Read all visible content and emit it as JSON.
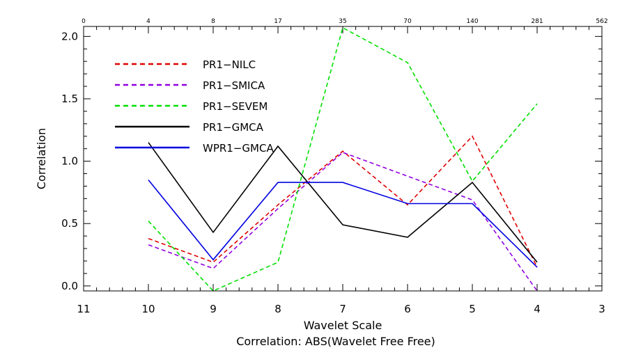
{
  "chart_data": {
    "type": "line",
    "title": "Correlation: ABS(Wavelet  Free Free)",
    "xlabel": "Wavelet Scale",
    "ylabel": "Correlation",
    "x_reversed": true,
    "xlim": [
      11,
      3
    ],
    "ylim": [
      -0.04,
      2.08
    ],
    "x_ticks": [
      11,
      10,
      9,
      8,
      7,
      6,
      5,
      4,
      3
    ],
    "x_tick_labels": [
      "11",
      "10",
      "9",
      "8",
      "7",
      "6",
      "5",
      "4",
      "3"
    ],
    "y_ticks": [
      0.0,
      0.5,
      1.0,
      1.5,
      2.0
    ],
    "y_tick_labels": [
      "0.0",
      "0.5",
      "1.0",
      "1.5",
      "2.0"
    ],
    "top_axis_ticks": [
      11,
      10,
      9,
      8,
      7,
      6,
      5,
      4,
      3
    ],
    "top_axis_tick_labels": [
      "0",
      "4",
      "8",
      "17",
      "35",
      "70",
      "140",
      "281",
      "562"
    ],
    "legend_position": "top-left",
    "series": [
      {
        "name": "PR1−NILC",
        "color": "#e00000",
        "dashed": true,
        "x": [
          10,
          9,
          8,
          7,
          6,
          5,
          4
        ],
        "y": [
          0.38,
          0.19,
          0.65,
          1.08,
          0.65,
          1.2,
          0.15
        ]
      },
      {
        "name": "PR1−SMICA",
        "color": "#9000e0",
        "dashed": true,
        "x": [
          10,
          9,
          8,
          7,
          6,
          5,
          4
        ],
        "y": [
          0.33,
          0.14,
          0.62,
          1.07,
          0.88,
          0.69,
          -0.04
        ]
      },
      {
        "name": "PR1−SEVEM",
        "color": "#00e000",
        "dashed": true,
        "x": [
          10,
          9,
          8,
          7,
          6,
          5,
          4
        ],
        "y": [
          0.52,
          -0.04,
          0.19,
          2.07,
          1.79,
          0.84,
          1.46
        ]
      },
      {
        "name": "PR1−GMCA",
        "color": "#000000",
        "dashed": false,
        "x": [
          10,
          9,
          8,
          7,
          6,
          5,
          4
        ],
        "y": [
          1.15,
          0.43,
          1.12,
          0.49,
          0.39,
          0.83,
          0.19
        ]
      },
      {
        "name": "WPR1−GMCA",
        "color": "#0000e0",
        "dashed": false,
        "x": [
          10,
          9,
          8,
          7,
          6,
          5,
          4
        ],
        "y": [
          0.85,
          0.21,
          0.83,
          0.83,
          0.66,
          0.66,
          0.15
        ]
      }
    ]
  }
}
